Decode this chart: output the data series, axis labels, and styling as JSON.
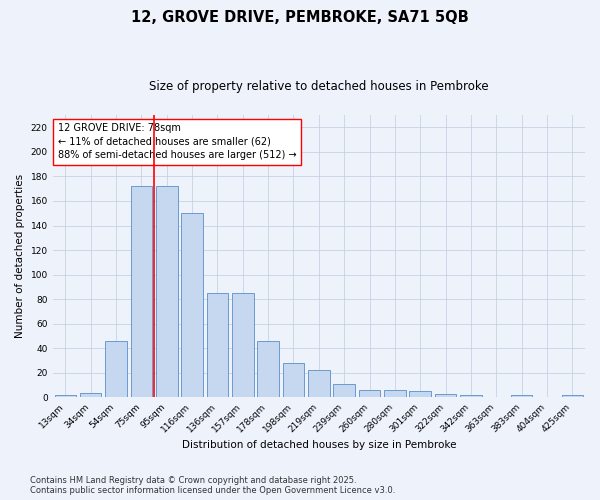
{
  "title1": "12, GROVE DRIVE, PEMBROKE, SA71 5QB",
  "title2": "Size of property relative to detached houses in Pembroke",
  "xlabel": "Distribution of detached houses by size in Pembroke",
  "ylabel": "Number of detached properties",
  "categories": [
    "13sqm",
    "34sqm",
    "54sqm",
    "75sqm",
    "95sqm",
    "116sqm",
    "136sqm",
    "157sqm",
    "178sqm",
    "198sqm",
    "219sqm",
    "239sqm",
    "260sqm",
    "280sqm",
    "301sqm",
    "322sqm",
    "342sqm",
    "363sqm",
    "383sqm",
    "404sqm",
    "425sqm"
  ],
  "values": [
    2,
    4,
    46,
    172,
    172,
    150,
    85,
    85,
    46,
    28,
    22,
    11,
    6,
    6,
    5,
    3,
    2,
    0,
    2,
    0,
    2
  ],
  "bar_color": "#c5d8f0",
  "bar_edge_color": "#5b8fc9",
  "vline_x": 3.5,
  "vline_color": "red",
  "annotation_text": "12 GROVE DRIVE: 78sqm\n← 11% of detached houses are smaller (62)\n88% of semi-detached houses are larger (512) →",
  "annotation_box_color": "white",
  "annotation_box_edge": "red",
  "ylim": [
    0,
    230
  ],
  "yticks": [
    0,
    20,
    40,
    60,
    80,
    100,
    120,
    140,
    160,
    180,
    200,
    220
  ],
  "bg_color": "#eef2fb",
  "footer1": "Contains HM Land Registry data © Crown copyright and database right 2025.",
  "footer2": "Contains public sector information licensed under the Open Government Licence v3.0.",
  "title_fontsize": 10.5,
  "subtitle_fontsize": 8.5,
  "axis_label_fontsize": 7.5,
  "tick_fontsize": 6.5,
  "annotation_fontsize": 7,
  "footer_fontsize": 6
}
